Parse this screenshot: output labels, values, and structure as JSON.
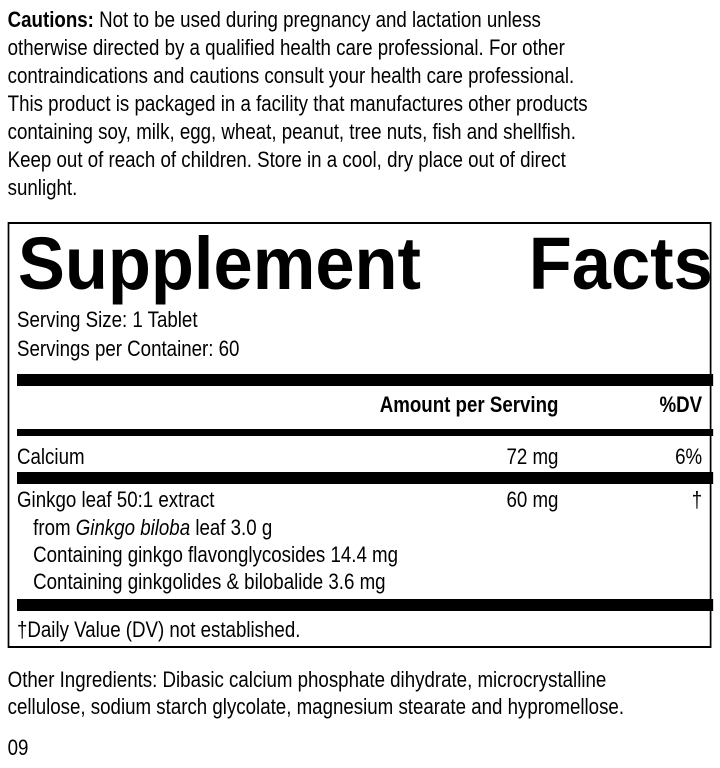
{
  "cautions": {
    "label": "Cautions:",
    "lines": [
      " Not to be used during pregnancy and lactation unless",
      "otherwise directed by a qualified health care professional. For other",
      "contraindications and cautions consult your health care professional.",
      "This product is packaged in a facility that manufactures other products",
      "containing soy, milk, egg, wheat, peanut, tree nuts, fish and shellfish.",
      "Keep out of reach of children. Store in a cool, dry place out of direct",
      "sunlight."
    ]
  },
  "facts": {
    "title_word1": "Supplement",
    "title_word2": "Facts",
    "serving_size": "Serving Size: 1 Tablet",
    "servings_per_container": "Servings per Container: 60",
    "header_amount": "Amount per Serving",
    "header_dv": "%DV",
    "rows": [
      {
        "name": "Calcium",
        "amount": "72 mg",
        "dv": "6%"
      },
      {
        "name": "Ginkgo leaf 50:1 extract",
        "amount": "60 mg",
        "dv": "†"
      }
    ],
    "ginkgo_sub": {
      "from_prefix": "from ",
      "species": "Ginkgo biloba",
      "from_suffix": " leaf 3.0 g",
      "line2": "Containing ginkgo flavonglycosides 14.4 mg",
      "line3": "Containing ginkgolides & bilobalide 3.6 mg"
    },
    "footnote": "†Daily Value (DV) not established."
  },
  "other_ingredients": {
    "line1": "Other Ingredients: Dibasic calcium phosphate dihydrate, microcrystalline",
    "line2": "cellulose, sodium starch glycolate, magnesium stearate and hypromellose."
  },
  "code": "09"
}
